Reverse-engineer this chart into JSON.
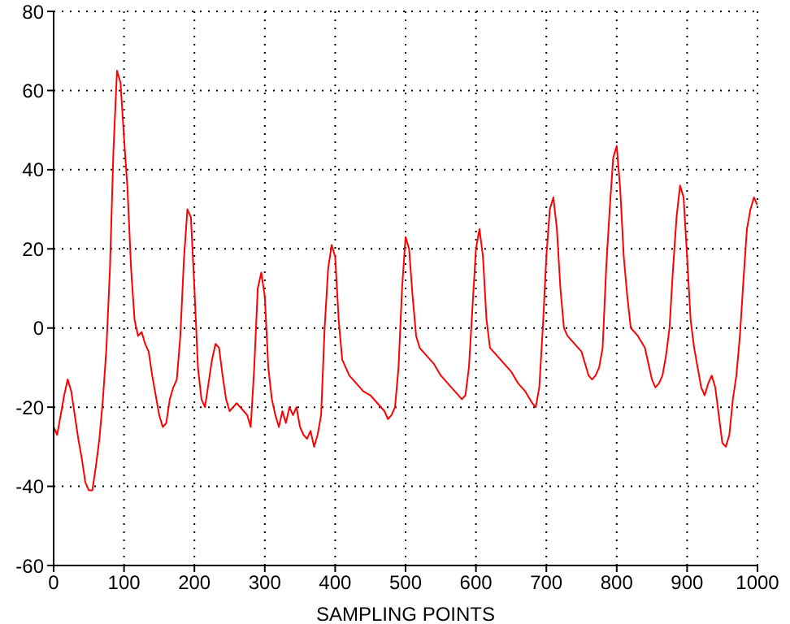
{
  "chart_data": {
    "type": "line",
    "xlabel": "SAMPLING POINTS",
    "x": [
      0,
      5,
      10,
      15,
      20,
      25,
      30,
      35,
      40,
      45,
      50,
      55,
      60,
      65,
      70,
      75,
      80,
      85,
      90,
      95,
      100,
      105,
      110,
      115,
      120,
      125,
      130,
      135,
      140,
      145,
      150,
      155,
      160,
      165,
      170,
      175,
      180,
      185,
      190,
      195,
      200,
      205,
      210,
      215,
      220,
      225,
      230,
      235,
      240,
      245,
      250,
      255,
      260,
      265,
      270,
      275,
      280,
      285,
      290,
      295,
      300,
      305,
      310,
      315,
      320,
      325,
      330,
      335,
      340,
      345,
      350,
      355,
      360,
      365,
      370,
      375,
      380,
      385,
      390,
      395,
      400,
      405,
      410,
      415,
      420,
      430,
      440,
      450,
      460,
      470,
      475,
      480,
      485,
      490,
      495,
      500,
      505,
      510,
      515,
      520,
      530,
      540,
      550,
      560,
      570,
      580,
      585,
      590,
      595,
      600,
      605,
      610,
      615,
      620,
      630,
      640,
      650,
      660,
      670,
      680,
      685,
      690,
      695,
      700,
      705,
      710,
      715,
      720,
      725,
      730,
      740,
      750,
      755,
      760,
      765,
      770,
      775,
      780,
      785,
      790,
      795,
      800,
      805,
      810,
      815,
      820,
      830,
      840,
      845,
      850,
      855,
      860,
      865,
      870,
      875,
      880,
      885,
      890,
      895,
      900,
      905,
      910,
      915,
      920,
      925,
      930,
      935,
      940,
      945,
      950,
      955,
      960,
      965,
      970,
      975,
      980,
      985,
      990,
      995,
      1000
    ],
    "series": [
      {
        "color": "#ff0000",
        "values": [
          -25,
          -27,
          -22,
          -17,
          -13,
          -16,
          -22,
          -28,
          -33,
          -39,
          -41,
          -41,
          -35,
          -28,
          -18,
          -5,
          15,
          45,
          65,
          62,
          48,
          35,
          15,
          2,
          -2,
          -1,
          -4,
          -6,
          -12,
          -17,
          -22,
          -25,
          -24,
          -18,
          -15,
          -13,
          -2,
          17,
          30,
          28,
          10,
          -10,
          -18,
          -20,
          -14,
          -8,
          -4,
          -5,
          -12,
          -18,
          -21,
          -20,
          -19,
          -20,
          -21,
          -22,
          -25,
          -10,
          10,
          14,
          8,
          -10,
          -18,
          -22,
          -25,
          -21,
          -24,
          -20,
          -22,
          -20,
          -25,
          -27,
          -28,
          -26,
          -30,
          -27,
          -22,
          0,
          15,
          21,
          18,
          2,
          -8,
          -10,
          -12,
          -14,
          -16,
          -17,
          -19,
          -21,
          -23,
          -22,
          -20,
          -10,
          10,
          23,
          20,
          8,
          -2,
          -5,
          -7,
          -9,
          -12,
          -14,
          -16,
          -18,
          -17,
          -10,
          5,
          20,
          25,
          18,
          2,
          -5,
          -7,
          -9,
          -11,
          -14,
          -16,
          -19,
          -20,
          -15,
          0,
          18,
          30,
          33,
          25,
          10,
          0,
          -2,
          -4,
          -6,
          -9,
          -12,
          -13,
          -12,
          -10,
          -5,
          15,
          30,
          43,
          46,
          35,
          18,
          8,
          0,
          -2,
          -5,
          -9,
          -13,
          -15,
          -14,
          -12,
          -7,
          0,
          15,
          28,
          36,
          33,
          18,
          2,
          -5,
          -10,
          -15,
          -17,
          -14,
          -12,
          -15,
          -22,
          -29,
          -30,
          -27,
          -18,
          -12,
          -2,
          12,
          25,
          30,
          33,
          31
        ]
      }
    ],
    "xlim": [
      0,
      1000
    ],
    "xticks": [
      0,
      100,
      200,
      300,
      400,
      500,
      600,
      700,
      800,
      900,
      1000
    ],
    "ylim": [
      -60,
      80
    ],
    "yticks": [
      -60,
      -40,
      -20,
      0,
      20,
      40,
      60,
      80
    ],
    "grid": true,
    "legend": false,
    "marker": "none",
    "line_style": "solid"
  }
}
